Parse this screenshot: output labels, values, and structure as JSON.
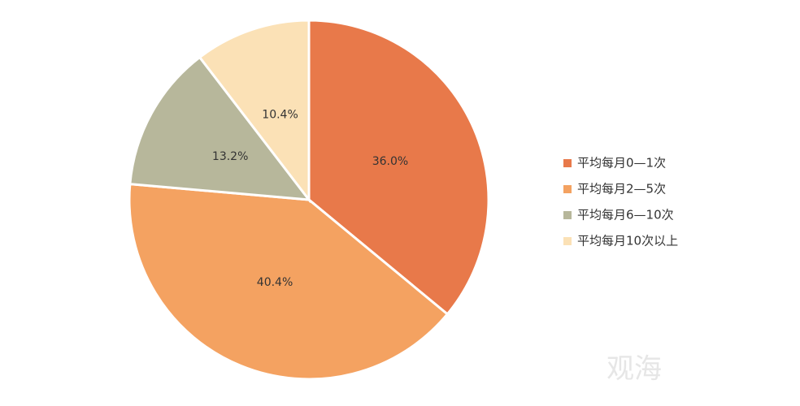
{
  "chart_data": {
    "type": "pie",
    "categories": [
      "平均每月0—1次",
      "平均每月2—5次",
      "平均每月6—10次",
      "平均每月10次以上"
    ],
    "values": [
      36.0,
      40.4,
      13.2,
      10.4
    ],
    "value_labels": [
      "36.0%",
      "40.4%",
      "13.2%",
      "10.4%"
    ],
    "colors": [
      "#e8794a",
      "#f4a261",
      "#b7b79b",
      "#fbe1b6"
    ],
    "legend": "right",
    "watermark": "观海"
  }
}
